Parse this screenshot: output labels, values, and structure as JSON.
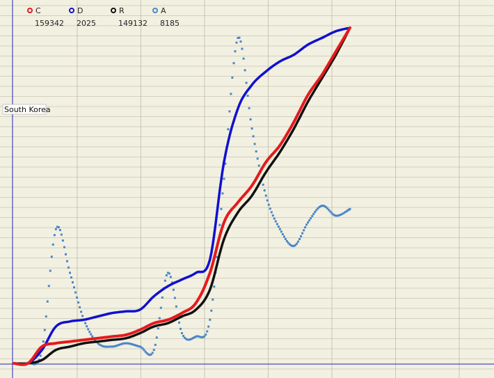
{
  "chart_data": {
    "type": "line",
    "title": "",
    "region_label": "South Korea",
    "xlabel": "",
    "ylabel": "",
    "grid": true,
    "legend_position": "top-left",
    "x": [
      0,
      1,
      2,
      3,
      4,
      5,
      6,
      7,
      8,
      9,
      10,
      11,
      12,
      13,
      14,
      15,
      16,
      17,
      18,
      19,
      20,
      21,
      22,
      23,
      24
    ],
    "series": [
      {
        "key": "C",
        "name": "C",
        "value_label": "159342",
        "color": "#e41a1c",
        "style": "line",
        "values": [
          0,
          0,
          0.05,
          0.06,
          0.065,
          0.07,
          0.075,
          0.08,
          0.085,
          0.1,
          0.12,
          0.13,
          0.15,
          0.18,
          0.27,
          0.42,
          0.48,
          0.53,
          0.6,
          0.65,
          0.72,
          0.8,
          0.86,
          0.93,
          1.0
        ]
      },
      {
        "key": "D",
        "name": "D",
        "value_label": "2025",
        "color": "#1010d0",
        "style": "line",
        "values": [
          0,
          0,
          0.04,
          0.11,
          0.125,
          0.13,
          0.14,
          0.15,
          0.155,
          0.16,
          0.2,
          0.23,
          0.25,
          0.27,
          0.31,
          0.6,
          0.76,
          0.83,
          0.87,
          0.9,
          0.92,
          0.95,
          0.97,
          0.99,
          1.0
        ]
      },
      {
        "key": "R",
        "name": "R",
        "value_label": "149132",
        "color": "#111111",
        "style": "line",
        "values": [
          0,
          0,
          0.01,
          0.04,
          0.05,
          0.06,
          0.065,
          0.07,
          0.075,
          0.09,
          0.11,
          0.12,
          0.14,
          0.16,
          0.22,
          0.37,
          0.45,
          0.5,
          0.57,
          0.63,
          0.7,
          0.78,
          0.85,
          0.92,
          1.0
        ]
      },
      {
        "key": "A",
        "name": "A",
        "value_label": "8185",
        "color": "#4a86c8",
        "style": "dots",
        "values": [
          0,
          0,
          0.04,
          0.4,
          0.27,
          0.13,
          0.06,
          0.05,
          0.06,
          0.05,
          0.04,
          0.27,
          0.09,
          0.08,
          0.13,
          0.55,
          0.97,
          0.7,
          0.5,
          0.4,
          0.35,
          0.42,
          0.47,
          0.44,
          0.46
        ]
      }
    ]
  }
}
